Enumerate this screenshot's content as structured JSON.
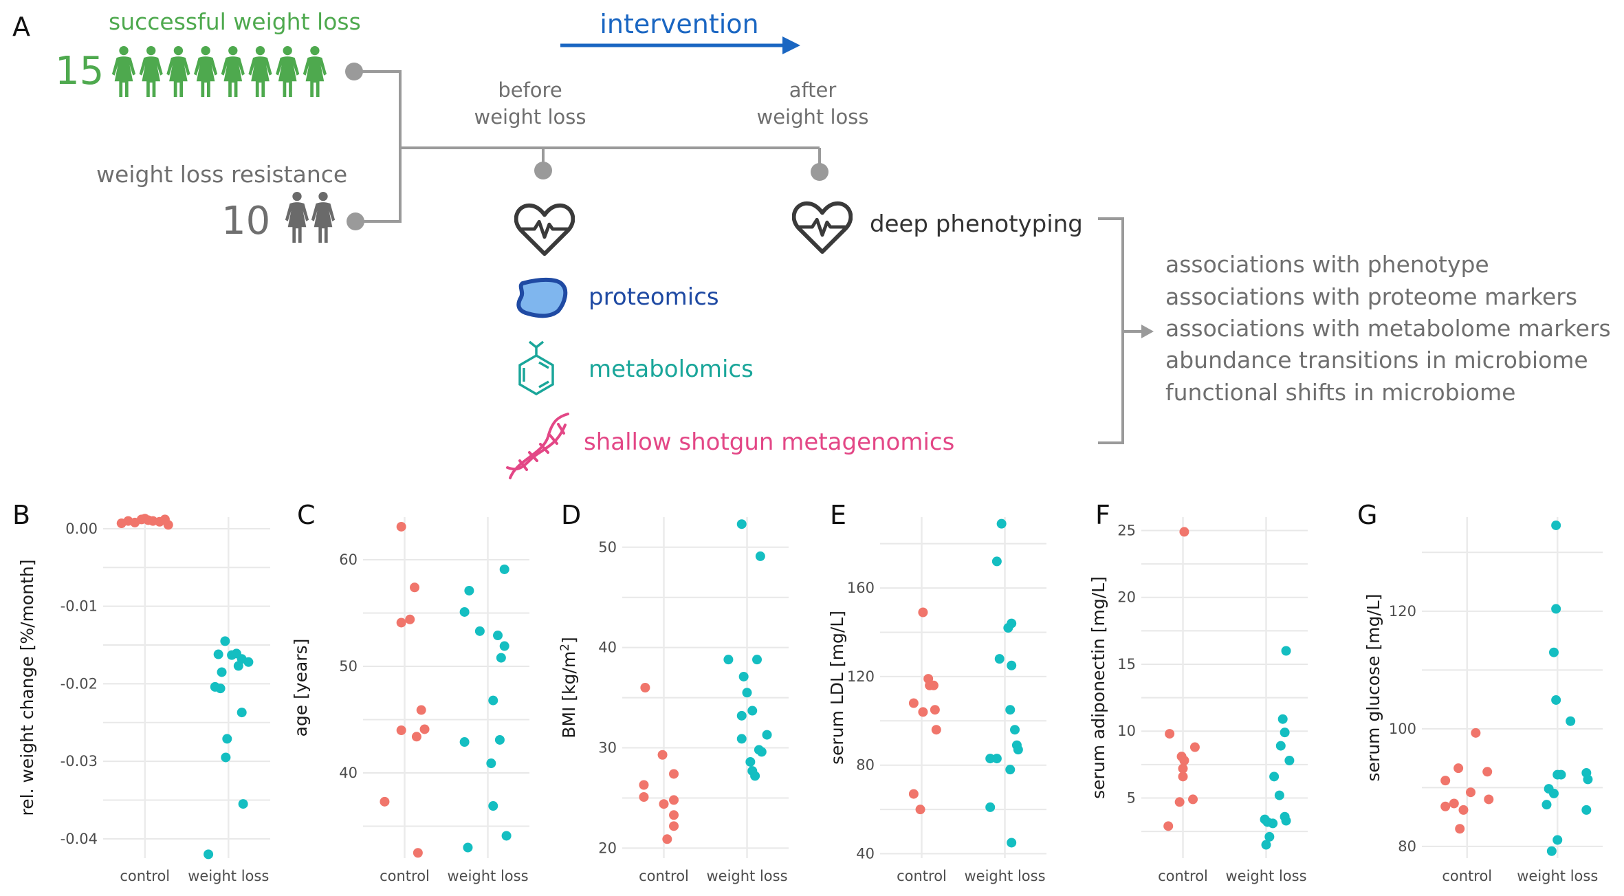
{
  "colors": {
    "green": "#4ea94e",
    "grey_text": "#6f6f6f",
    "grey_person": "#6a6a6a",
    "connector": "#9a9a9a",
    "intervention_blue": "#1a66c2",
    "proteomics_blue": "#1f4aa3",
    "proteomics_fill": "#7fb6ee",
    "metabolomics_teal": "#1aa69a",
    "metagenomics_pink": "#e34786",
    "dark_text": "#333333",
    "control_point": "#f0756b",
    "weightloss_point": "#14bec1"
  },
  "icons": [
    "person-icon",
    "heart-pulse-icon",
    "protein-blob-icon",
    "benzene-molecule-icon",
    "dna-helix-icon",
    "arrow-right-icon"
  ],
  "panelA": {
    "letter": "A",
    "success_label": "successful weight loss",
    "success_count": "15",
    "resistance_label": "weight loss resistance",
    "resistance_count": "10",
    "intervention_label": "intervention",
    "before_label_1": "before",
    "before_label_2": "weight loss",
    "after_label_1": "after",
    "after_label_2": "weight loss",
    "deep_phenotyping": "deep phenotyping",
    "proteomics": "proteomics",
    "metabolomics": "metabolomics",
    "metagenomics": "shallow shotgun metagenomics",
    "outcomes": [
      "associations with phenotype",
      "associations with proteome markers",
      "associations with metabolome markers",
      "abundance transitions in microbiome",
      "functional shifts in microbiome"
    ]
  },
  "chart_data": [
    {
      "panel": "B",
      "type": "scatter",
      "categories": [
        "control",
        "weight loss"
      ],
      "ylabel": "rel. weight change [%/month]",
      "ylim": [
        -0.0425,
        0.0015
      ],
      "yticks": [
        0,
        -0.01,
        -0.02,
        -0.03,
        -0.04
      ],
      "yticklabels": [
        "0.00",
        "-0.01",
        "-0.02",
        "-0.03",
        "-0.04"
      ],
      "series": [
        {
          "values": [
            0.001,
            0.0008,
            0.0012,
            0.0013,
            0.0011,
            0.001,
            0.0009,
            0.0012,
            0.0005,
            0.0007
          ]
        },
        {
          "values": [
            -0.0145,
            -0.0162,
            -0.0163,
            -0.0161,
            -0.0172,
            -0.0168,
            -0.0177,
            -0.0185,
            -0.0204,
            -0.0206,
            -0.0237,
            -0.0271,
            -0.0295,
            -0.0355,
            -0.042
          ]
        }
      ],
      "jitter": [
        [
          -0.25,
          -0.15,
          -0.05,
          0.0,
          0.05,
          0.12,
          0.22,
          0.3,
          0.35,
          -0.35
        ],
        [
          -0.05,
          -0.15,
          0.05,
          0.12,
          0.3,
          0.2,
          0.15,
          -0.1,
          -0.2,
          -0.12,
          0.2,
          -0.02,
          -0.04,
          0.22,
          -0.3
        ]
      ]
    },
    {
      "panel": "C",
      "type": "scatter",
      "categories": [
        "control",
        "weight loss"
      ],
      "ylabel": "age [years]",
      "ylim": [
        32,
        64
      ],
      "yticks": [
        40,
        50,
        60
      ],
      "yticklabels": [
        "40",
        "50",
        "60"
      ],
      "series": [
        {
          "values": [
            63.1,
            57.4,
            54.4,
            54.1,
            45.9,
            44.1,
            44.0,
            43.4,
            37.3,
            32.5
          ]
        },
        {
          "values": [
            59.1,
            57.1,
            55.1,
            53.3,
            52.9,
            51.9,
            50.8,
            46.8,
            43.1,
            42.9,
            40.9,
            36.9,
            34.1,
            33.0
          ]
        }
      ],
      "jitter": [
        [
          -0.05,
          0.15,
          0.08,
          -0.05,
          0.25,
          0.3,
          -0.05,
          0.18,
          -0.3,
          0.2
        ],
        [
          0.25,
          -0.28,
          -0.35,
          -0.12,
          0.15,
          0.25,
          0.2,
          0.08,
          0.18,
          -0.35,
          0.05,
          0.08,
          0.28,
          -0.3
        ]
      ]
    },
    {
      "panel": "D",
      "type": "scatter",
      "categories": [
        "control",
        "weight loss"
      ],
      "ylabel": "BMI [kg/m²]",
      "ylim": [
        19,
        53
      ],
      "yticks": [
        20,
        30,
        40,
        50
      ],
      "yticklabels": [
        "20",
        "30",
        "40",
        "50"
      ],
      "series": [
        {
          "values": [
            36.0,
            29.3,
            27.4,
            26.3,
            25.1,
            24.8,
            24.4,
            23.3,
            22.2,
            20.9
          ]
        },
        {
          "values": [
            52.3,
            49.1,
            38.8,
            38.8,
            37.1,
            35.5,
            33.7,
            33.2,
            31.3,
            30.9,
            29.8,
            29.6,
            28.6,
            27.7,
            27.2
          ]
        }
      ],
      "jitter": [
        [
          -0.28,
          -0.02,
          0.15,
          -0.3,
          -0.3,
          0.15,
          0.0,
          0.15,
          0.15,
          0.05
        ],
        [
          -0.08,
          0.2,
          -0.28,
          0.15,
          -0.05,
          0.0,
          0.08,
          -0.08,
          0.3,
          -0.08,
          0.18,
          0.22,
          0.05,
          0.08,
          0.12
        ]
      ]
    },
    {
      "panel": "E",
      "type": "scatter",
      "categories": [
        "control",
        "weight loss"
      ],
      "ylabel": "serum LDL [mg/L]",
      "ylim": [
        38,
        192
      ],
      "yticks": [
        40,
        80,
        120,
        160
      ],
      "yticklabels": [
        "40",
        "80",
        "120",
        "160"
      ],
      "series": [
        {
          "values": [
            149,
            119,
            116,
            116,
            108,
            105,
            104,
            96,
            67,
            60
          ]
        },
        {
          "values": [
            189,
            172,
            144,
            142,
            128,
            125,
            105,
            96,
            89,
            87,
            83,
            83,
            78,
            61,
            45
          ]
        }
      ],
      "jitter": [
        [
          0.02,
          0.1,
          0.18,
          0.12,
          -0.12,
          0.2,
          0.02,
          0.22,
          -0.12,
          -0.02
        ],
        [
          -0.05,
          -0.12,
          0.1,
          0.05,
          -0.08,
          0.1,
          0.08,
          0.15,
          0.18,
          0.2,
          -0.22,
          -0.12,
          0.08,
          -0.22,
          0.1
        ]
      ]
    },
    {
      "panel": "F",
      "type": "scatter",
      "categories": [
        "control",
        "weight loss"
      ],
      "ylabel": "serum adiponectin [mg/L]",
      "ylim": [
        0.5,
        26
      ],
      "yticks": [
        5,
        10,
        15,
        20,
        25
      ],
      "yticklabels": [
        "5",
        "10",
        "15",
        "20",
        "25"
      ],
      "series": [
        {
          "values": [
            24.9,
            9.8,
            8.8,
            8.1,
            7.8,
            7.2,
            6.6,
            4.9,
            4.7,
            2.9
          ]
        },
        {
          "values": [
            16.0,
            10.9,
            9.9,
            8.9,
            7.8,
            6.6,
            5.2,
            3.6,
            3.4,
            3.3,
            3.2,
            3.1,
            2.1,
            1.5
          ]
        }
      ],
      "jitter": [
        [
          0.02,
          -0.2,
          0.18,
          -0.02,
          0.02,
          0.0,
          0.0,
          0.15,
          -0.05,
          -0.22
        ],
        [
          0.3,
          0.25,
          0.28,
          0.22,
          0.35,
          0.12,
          0.2,
          0.28,
          -0.02,
          0.3,
          0.02,
          0.1,
          0.05,
          0.0
        ]
      ]
    },
    {
      "panel": "G",
      "type": "scatter",
      "categories": [
        "control",
        "weight loss"
      ],
      "ylabel": "serum glucose [mg/L]",
      "ylim": [
        78,
        136
      ],
      "yticks": [
        80,
        100,
        120
      ],
      "yticklabels": [
        "80",
        "100",
        "120"
      ],
      "series": [
        {
          "values": [
            99.3,
            93.3,
            92.7,
            91.2,
            89.2,
            88.0,
            87.3,
            86.8,
            86.2,
            83.0
          ]
        },
        {
          "values": [
            134.6,
            120.4,
            113.0,
            104.9,
            101.3,
            92.5,
            92.2,
            92.2,
            91.4,
            89.8,
            89.0,
            87.1,
            86.2,
            81.1,
            79.2
          ]
        }
      ],
      "jitter": [
        [
          0.12,
          -0.12,
          0.28,
          -0.3,
          0.05,
          0.3,
          -0.18,
          -0.3,
          -0.05,
          -0.1
        ],
        [
          -0.02,
          -0.02,
          -0.05,
          -0.02,
          0.18,
          0.4,
          0.0,
          0.05,
          0.42,
          -0.12,
          -0.05,
          -0.15,
          0.4,
          0.0,
          -0.08
        ]
      ]
    }
  ]
}
